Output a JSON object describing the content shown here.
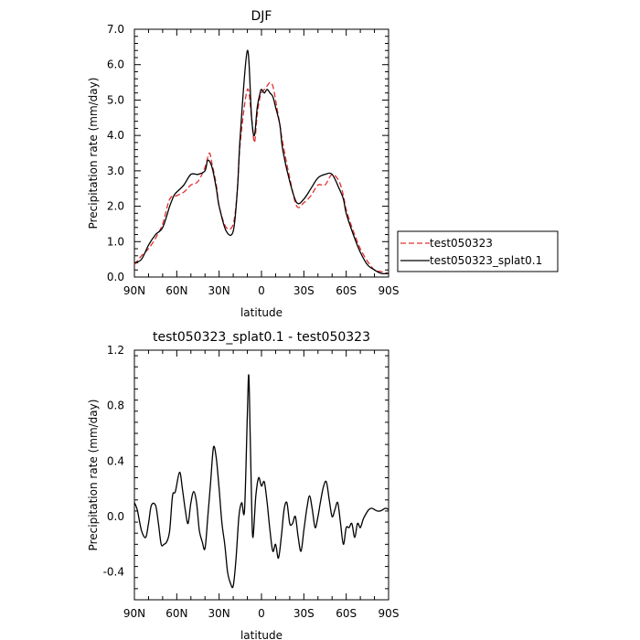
{
  "chart_data": [
    {
      "type": "line",
      "title": "DJF",
      "xlabel": "latitude",
      "ylabel": "Precipitation rate (mm/day)",
      "xlim": [
        90,
        -90
      ],
      "ylim": [
        0,
        7
      ],
      "x_tick_values": [
        90,
        60,
        30,
        0,
        -30,
        -60,
        -90
      ],
      "x_tick_labels": [
        "90N",
        "60N",
        "30N",
        "0",
        "30S",
        "60S",
        "90S"
      ],
      "y_tick_values": [
        0,
        1,
        2,
        3,
        4,
        5,
        6,
        7
      ],
      "y_tick_labels": [
        "0.0",
        "1.0",
        "2.0",
        "3.0",
        "4.0",
        "5.0",
        "6.0",
        "7.0"
      ],
      "legend_position": "right",
      "series": [
        {
          "name": "test050323",
          "color": "#e03030",
          "dash": "dashed",
          "x": [
            90,
            85,
            80,
            75,
            70,
            65,
            60,
            55,
            50,
            45,
            40,
            37,
            35,
            32,
            30,
            25,
            20,
            17,
            15,
            10,
            7,
            5,
            3,
            1,
            0,
            -2,
            -4,
            -6,
            -8,
            -10,
            -13,
            -15,
            -20,
            -25,
            -30,
            -35,
            -40,
            -45,
            -50,
            -55,
            -58,
            -60,
            -65,
            -70,
            -75,
            -80,
            -85,
            -90
          ],
          "y": [
            0.35,
            0.6,
            0.8,
            1.1,
            1.5,
            2.2,
            2.3,
            2.4,
            2.6,
            2.7,
            3.1,
            3.5,
            3.2,
            2.6,
            2.0,
            1.4,
            1.5,
            2.5,
            3.8,
            5.3,
            4.5,
            3.8,
            4.6,
            5.1,
            5.2,
            5.3,
            5.4,
            5.5,
            5.4,
            5.0,
            4.3,
            3.8,
            2.8,
            2.0,
            2.1,
            2.3,
            2.6,
            2.6,
            2.9,
            2.7,
            2.3,
            1.9,
            1.3,
            0.8,
            0.45,
            0.2,
            0.15,
            0.1
          ]
        },
        {
          "name": "test050323_splat0.1",
          "color": "#000000",
          "dash": "solid",
          "x": [
            90,
            85,
            80,
            75,
            70,
            65,
            62,
            60,
            55,
            50,
            45,
            40,
            38,
            35,
            32,
            30,
            25,
            20,
            17,
            15,
            10,
            7,
            5,
            3,
            1,
            0,
            -2,
            -4,
            -6,
            -8,
            -10,
            -13,
            -15,
            -20,
            -25,
            -30,
            -35,
            -40,
            -45,
            -50,
            -55,
            -58,
            -60,
            -65,
            -70,
            -75,
            -80,
            -85,
            -90
          ],
          "y": [
            0.4,
            0.5,
            0.9,
            1.2,
            1.4,
            2.0,
            2.3,
            2.4,
            2.6,
            2.9,
            2.9,
            3.0,
            3.3,
            3.1,
            2.5,
            2.0,
            1.3,
            1.3,
            2.5,
            4.0,
            6.4,
            4.5,
            4.0,
            4.8,
            5.2,
            5.3,
            5.2,
            5.3,
            5.2,
            5.1,
            4.8,
            4.3,
            3.6,
            2.7,
            2.1,
            2.2,
            2.5,
            2.8,
            2.9,
            2.9,
            2.5,
            2.2,
            1.8,
            1.2,
            0.7,
            0.35,
            0.2,
            0.1,
            0.1
          ]
        }
      ]
    },
    {
      "type": "line",
      "title": "test050323_splat0.1 - test050323",
      "xlabel": "latitude",
      "ylabel": "Precipitation rate (mm/day)",
      "xlim": [
        90,
        -90
      ],
      "ylim": [
        -0.6,
        1.2
      ],
      "x_tick_values": [
        90,
        60,
        30,
        0,
        -30,
        -60,
        -90
      ],
      "x_tick_labels": [
        "90N",
        "60N",
        "30N",
        "0",
        "30S",
        "60S",
        "90S"
      ],
      "y_tick_values": [
        -0.4,
        0,
        0.4,
        0.8,
        1.2
      ],
      "y_tick_labels": [
        "-0.4",
        "0.0",
        "0.4",
        "0.8",
        "1.2"
      ],
      "series": [
        {
          "color": "#000000",
          "dash": "solid",
          "x": [
            90,
            88,
            85,
            82,
            80,
            78,
            75,
            73,
            71,
            69,
            67,
            65,
            63,
            61,
            58,
            56,
            54,
            52,
            50,
            48,
            46,
            44,
            42,
            40,
            38,
            36,
            34,
            32,
            30,
            28,
            26,
            24,
            22,
            20,
            18,
            16,
            14,
            12,
            10,
            9,
            8,
            7,
            6,
            4,
            2,
            0,
            -2,
            -4,
            -6,
            -8,
            -10,
            -12,
            -14,
            -16,
            -18,
            -20,
            -22,
            -24,
            -26,
            -28,
            -30,
            -32,
            -34,
            -36,
            -38,
            -40,
            -42,
            -44,
            -46,
            -48,
            -50,
            -52,
            -54,
            -56,
            -58,
            -60,
            -62,
            -64,
            -66,
            -68,
            -70,
            -72,
            -74,
            -76,
            -78,
            -80,
            -82,
            -84,
            -86,
            -88,
            -90
          ],
          "y": [
            0.1,
            0.05,
            -0.1,
            -0.15,
            -0.05,
            0.08,
            0.08,
            -0.05,
            -0.2,
            -0.2,
            -0.18,
            -0.1,
            0.15,
            0.18,
            0.32,
            0.2,
            0.05,
            -0.05,
            0.1,
            0.18,
            0.1,
            -0.1,
            -0.18,
            -0.23,
            0.0,
            0.25,
            0.5,
            0.42,
            0.2,
            -0.05,
            -0.2,
            -0.4,
            -0.48,
            -0.5,
            -0.3,
            0.0,
            0.1,
            0.05,
            0.75,
            1.02,
            0.6,
            0.1,
            -0.15,
            0.15,
            0.28,
            0.22,
            0.25,
            0.1,
            -0.1,
            -0.25,
            -0.2,
            -0.3,
            -0.15,
            0.05,
            0.1,
            -0.05,
            -0.05,
            0.0,
            -0.15,
            -0.25,
            -0.1,
            0.05,
            0.15,
            0.05,
            -0.08,
            0.0,
            0.12,
            0.22,
            0.25,
            0.12,
            0.0,
            0.05,
            0.1,
            -0.05,
            -0.2,
            -0.08,
            -0.08,
            -0.05,
            -0.15,
            -0.05,
            -0.08,
            -0.02,
            0.02,
            0.05,
            0.06,
            0.05,
            0.04,
            0.04,
            0.05,
            0.06,
            0.05
          ]
        }
      ]
    }
  ]
}
